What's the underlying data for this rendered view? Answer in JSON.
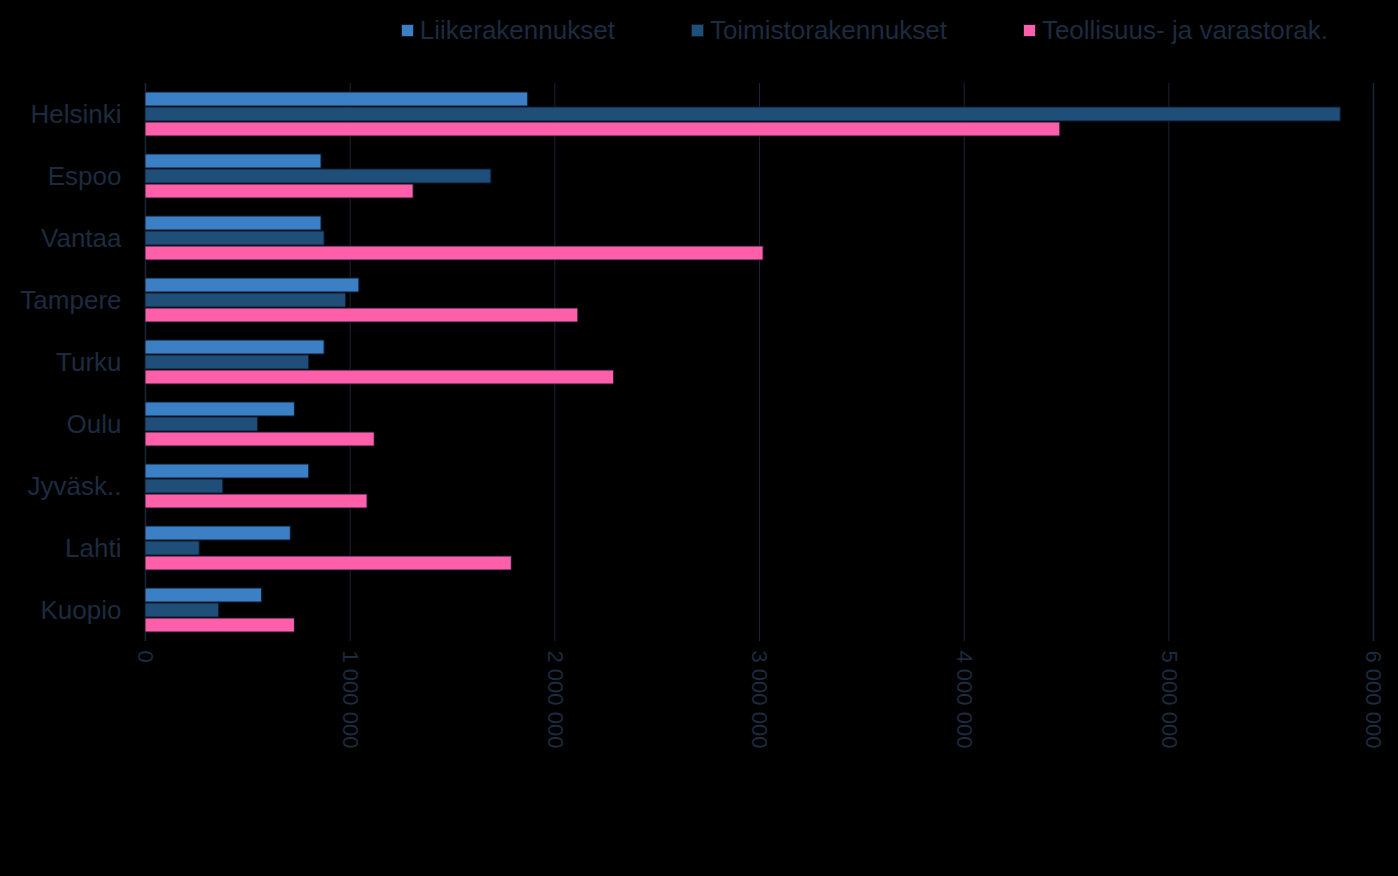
{
  "chart_data": {
    "type": "bar",
    "orientation": "horizontal",
    "categories": [
      "Helsinki",
      "Espoo",
      "Vantaa",
      "Tampere",
      "Turku",
      "Oulu",
      "Jyväsk..",
      "Lahti",
      "Kuopio"
    ],
    "series": [
      {
        "name": "Liikerakennukset",
        "color": "#3b7fc4",
        "values": [
          1870000,
          860000,
          860000,
          1045000,
          875000,
          730000,
          800000,
          710000,
          570000
        ]
      },
      {
        "name": "Toimistorakennukset",
        "color": "#1f4e79",
        "values": [
          5840000,
          1690000,
          875000,
          980000,
          800000,
          550000,
          380000,
          265000,
          360000
        ]
      },
      {
        "name": "Teollisuus- ja varastorak.",
        "color": "#ff5fa8",
        "values": [
          4470000,
          1310000,
          3020000,
          2115000,
          2290000,
          1120000,
          1085000,
          1790000,
          730000
        ]
      }
    ],
    "xlim": [
      0,
      6000000
    ],
    "xticks": [
      {
        "value": 0,
        "label": "0"
      },
      {
        "value": 1000000,
        "label": "1 000 000"
      },
      {
        "value": 2000000,
        "label": "2 000 000"
      },
      {
        "value": 3000000,
        "label": "3 000 000"
      },
      {
        "value": 4000000,
        "label": "4 000 000"
      },
      {
        "value": 5000000,
        "label": "5 000 000"
      },
      {
        "value": 6000000,
        "label": "6 000 000"
      }
    ],
    "grid": true,
    "legend": "top"
  }
}
